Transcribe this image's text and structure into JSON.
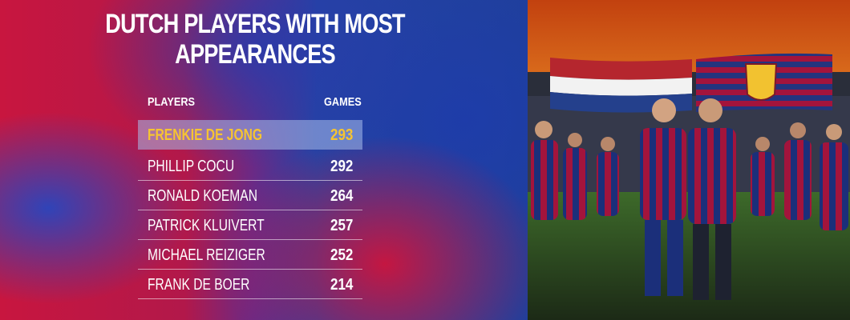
{
  "header": {
    "title_lines": [
      "DUTCH PLAYERS WITH MOST",
      "APPEARANCES"
    ]
  },
  "table": {
    "columns": [
      "PLAYERS",
      "GAMES"
    ],
    "rows": [
      [
        "FRENKIE DE JONG",
        293
      ],
      [
        "PHILLIP COCU",
        292
      ],
      [
        "RONALD KOEMAN",
        264
      ],
      [
        "PATRICK KLUIVERT",
        257
      ],
      [
        "MICHAEL REIZIGER",
        252
      ],
      [
        "FRANK DE BOER",
        214
      ]
    ]
  }
}
